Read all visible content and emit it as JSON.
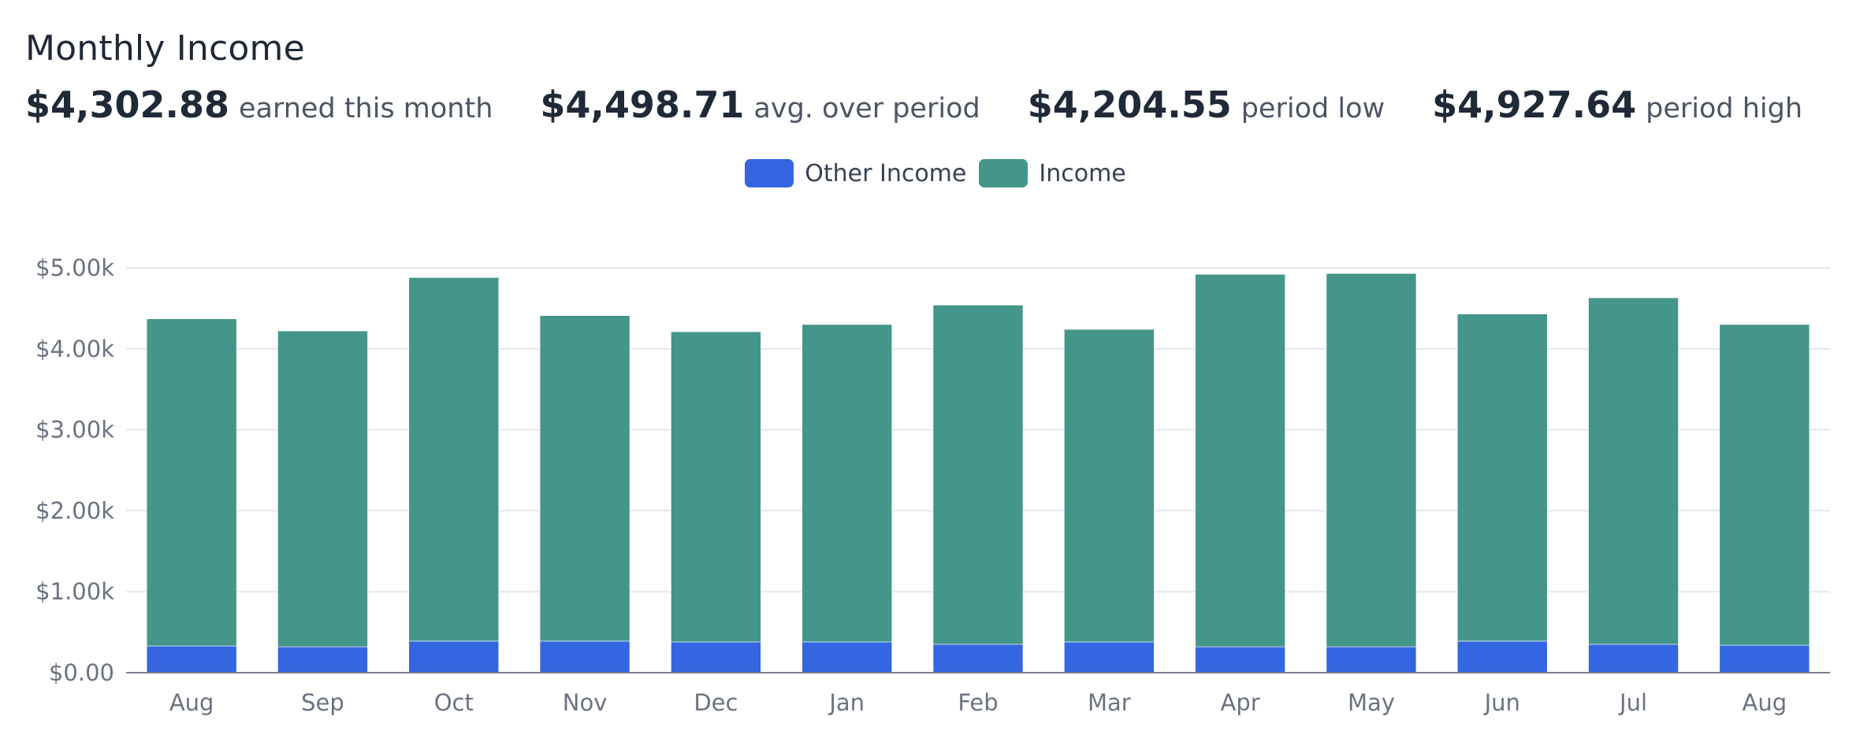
{
  "header": {
    "title": "Monthly Income",
    "stats": [
      {
        "value": "$4,302.88",
        "label": "earned this month"
      },
      {
        "value": "$4,498.71",
        "label": "avg. over period"
      },
      {
        "value": "$4,204.55",
        "label": "period low"
      },
      {
        "value": "$4,927.64",
        "label": "period high"
      }
    ]
  },
  "legend": [
    {
      "label": "Other Income",
      "color": "#3366e0"
    },
    {
      "label": "Income",
      "color": "#44958a"
    }
  ],
  "chart_data": {
    "type": "bar",
    "stacked": true,
    "categories": [
      "Aug",
      "Sep",
      "Oct",
      "Nov",
      "Dec",
      "Jan",
      "Feb",
      "Mar",
      "Apr",
      "May",
      "Jun",
      "Jul",
      "Aug"
    ],
    "series": [
      {
        "name": "Other Income",
        "color": "#3366e0",
        "values": [
          330,
          320,
          390,
          390,
          380,
          380,
          350,
          380,
          320,
          320,
          390,
          350,
          340
        ]
      },
      {
        "name": "Income",
        "color": "#44958a",
        "values": [
          4040,
          3900,
          4490,
          4020,
          3830,
          3920,
          4190,
          3860,
          4600,
          4610,
          4040,
          4280,
          3960
        ]
      }
    ],
    "ylim": [
      0,
      5000
    ],
    "yticks": [
      {
        "value": 0,
        "label": "$0.00"
      },
      {
        "value": 1000,
        "label": "$1.00k"
      },
      {
        "value": 2000,
        "label": "$2.00k"
      },
      {
        "value": 3000,
        "label": "$3.00k"
      },
      {
        "value": 4000,
        "label": "$4.00k"
      },
      {
        "value": 5000,
        "label": "$5.00k"
      }
    ],
    "grid": true,
    "legend_position": "top-center"
  }
}
